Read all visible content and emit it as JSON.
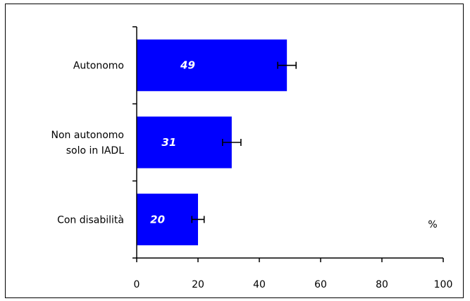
{
  "chart_data": {
    "type": "bar",
    "orientation": "horizontal",
    "categories": [
      [
        "Autonomo"
      ],
      [
        "Non autonomo",
        "solo in IADL"
      ],
      [
        "Con disabilità"
      ]
    ],
    "values": [
      49,
      31,
      20
    ],
    "data_labels": [
      "49",
      "31",
      "20"
    ],
    "error_bars": [
      3,
      3,
      2
    ],
    "xlim": [
      0,
      100
    ],
    "xticks": [
      0,
      20,
      40,
      60,
      80,
      100
    ],
    "xtick_labels": [
      "0",
      "20",
      "40",
      "60",
      "80",
      "100"
    ],
    "unit_label": "%",
    "grid": false,
    "legend": "none",
    "colors": {
      "bar": "#0000ff",
      "axis": "#000000",
      "data_label": "#ffffff"
    }
  }
}
